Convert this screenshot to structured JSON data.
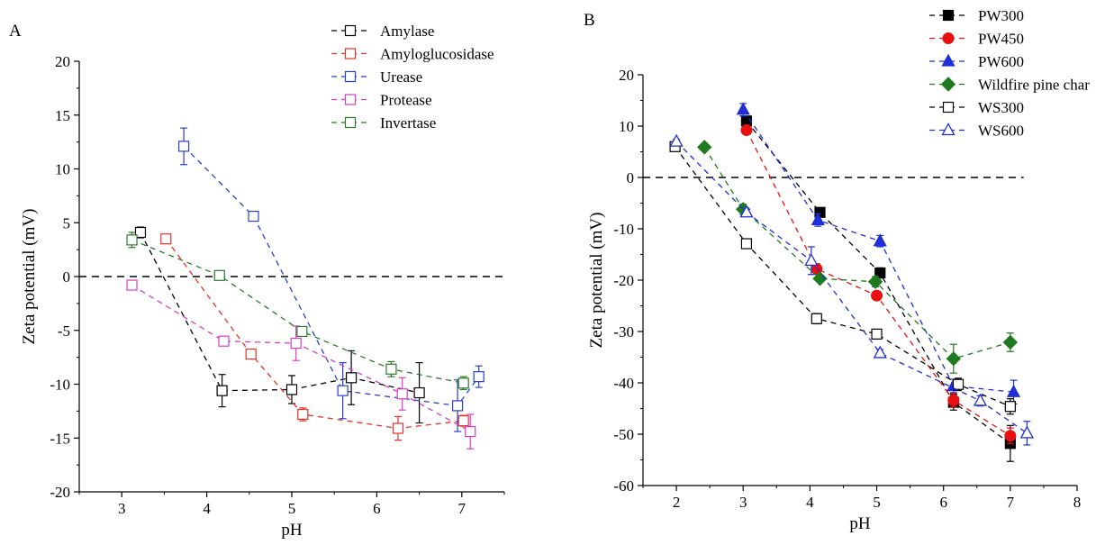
{
  "panels": {
    "A": {
      "label": "A"
    },
    "B": {
      "label": "B"
    }
  },
  "chart_data": [
    {
      "type": "scatter",
      "panel": "A",
      "xlabel": "pH",
      "ylabel": "Zeta potential (mV)",
      "xlim": [
        2.5,
        7.5
      ],
      "ylim": [
        -20,
        20
      ],
      "xticks": [
        3,
        4,
        5,
        6,
        7
      ],
      "yticks": [
        -20,
        -15,
        -10,
        -5,
        0,
        5,
        10,
        15,
        20
      ],
      "reference_line_y": 0,
      "legend_position": "top-right",
      "series": [
        {
          "name": "Amylase",
          "color": "#000000",
          "marker": "square-open",
          "x": [
            3.22,
            4.18,
            5.0,
            5.7,
            6.5
          ],
          "y": [
            4.1,
            -10.6,
            -10.5,
            -9.4,
            -10.8
          ],
          "err": [
            0.5,
            1.5,
            1.3,
            2.5,
            2.8
          ]
        },
        {
          "name": "Amyloglucosidase",
          "color": "#e8302a",
          "marker": "square-open",
          "x": [
            3.52,
            4.52,
            5.13,
            6.25,
            7.02
          ],
          "y": [
            3.5,
            -7.2,
            -12.8,
            -14.1,
            -13.4
          ],
          "err": [
            0.2,
            0.3,
            0.6,
            1.1,
            0.5
          ]
        },
        {
          "name": "Urease",
          "color": "#2a3fd1",
          "marker": "square-open",
          "x": [
            3.73,
            4.55,
            5.6,
            6.95,
            7.2
          ],
          "y": [
            12.1,
            5.6,
            -10.6,
            -12.0,
            -9.3
          ],
          "err": [
            1.7,
            0.4,
            2.6,
            2.4,
            1.0
          ]
        },
        {
          "name": "Protease",
          "color": "#d63cc6",
          "marker": "square-open",
          "x": [
            3.12,
            4.2,
            5.05,
            6.3,
            7.1
          ],
          "y": [
            -0.8,
            -6.0,
            -6.2,
            -10.9,
            -14.4
          ],
          "err": [
            0.3,
            0.2,
            1.6,
            1.5,
            1.6
          ]
        },
        {
          "name": "Invertase",
          "color": "#2a7a2a",
          "marker": "square-open",
          "x": [
            3.12,
            4.15,
            5.12,
            6.17,
            7.02
          ],
          "y": [
            3.4,
            0.1,
            -5.1,
            -8.6,
            -9.9
          ],
          "err": [
            0.7,
            0.2,
            0.3,
            0.7,
            0.6
          ]
        }
      ]
    },
    {
      "type": "scatter",
      "panel": "B",
      "xlabel": "pH",
      "ylabel": "Zeta potential (mV)",
      "xlim": [
        1.5,
        8
      ],
      "ylim": [
        -60,
        20
      ],
      "xticks": [
        2,
        3,
        4,
        5,
        6,
        7,
        8
      ],
      "yticks": [
        -60,
        -50,
        -40,
        -30,
        -20,
        -10,
        0,
        10,
        20
      ],
      "reference_line_y": 0,
      "reference_line_xlim": [
        1.5,
        7.2
      ],
      "legend_position": "top-right",
      "series": [
        {
          "name": "PW300",
          "color": "#000000",
          "marker": "square-filled",
          "x": [
            3.05,
            4.15,
            5.05,
            6.15,
            7.0
          ],
          "y": [
            11.0,
            -6.8,
            -18.6,
            -43.8,
            -51.8
          ],
          "err": [
            0.8,
            0.8,
            1.0,
            1.5,
            3.5
          ]
        },
        {
          "name": "PW450",
          "color": "#e81010",
          "marker": "circle-filled",
          "x": [
            3.05,
            4.1,
            5.0,
            6.15,
            7.0
          ],
          "y": [
            9.2,
            -17.8,
            -23.0,
            -43.4,
            -50.3
          ],
          "err": [
            0.3,
            1.0,
            0.5,
            1.3,
            1.5
          ]
        },
        {
          "name": "PW600",
          "color": "#1f2fd6",
          "marker": "triangle-filled",
          "x": [
            3.0,
            4.12,
            5.05,
            6.15,
            7.05
          ],
          "y": [
            13.2,
            -8.3,
            -12.4,
            -40.6,
            -41.8
          ],
          "err": [
            1.2,
            1.2,
            1.1,
            1.3,
            2.3
          ]
        },
        {
          "name": "Wildfire pine char",
          "color": "#1f7a1f",
          "marker": "diamond-filled",
          "x": [
            2.42,
            3.0,
            4.15,
            4.98,
            6.15,
            7.0
          ],
          "y": [
            5.9,
            -6.2,
            -19.7,
            -20.3,
            -35.3,
            -32.1
          ],
          "err": [
            0.5,
            1.0,
            0.5,
            1.0,
            2.8,
            1.8
          ]
        },
        {
          "name": "WS300",
          "color": "#000000",
          "marker": "square-open",
          "x": [
            1.98,
            3.05,
            4.1,
            5.0,
            6.22,
            7.0
          ],
          "y": [
            6.0,
            -12.9,
            -27.5,
            -30.5,
            -40.3,
            -44.6
          ],
          "err": [
            0.5,
            0.5,
            1.0,
            0.5,
            1.2,
            1.5
          ]
        },
        {
          "name": "WS600",
          "color": "#1f2fd6",
          "marker": "triangle-open",
          "x": [
            2.0,
            3.05,
            4.02,
            5.05,
            6.55,
            7.25
          ],
          "y": [
            7.0,
            -6.8,
            -16.2,
            -34.2,
            -43.5,
            -49.8
          ],
          "err": [
            0.4,
            0.6,
            2.7,
            0.7,
            1.0,
            2.3
          ]
        }
      ]
    }
  ]
}
